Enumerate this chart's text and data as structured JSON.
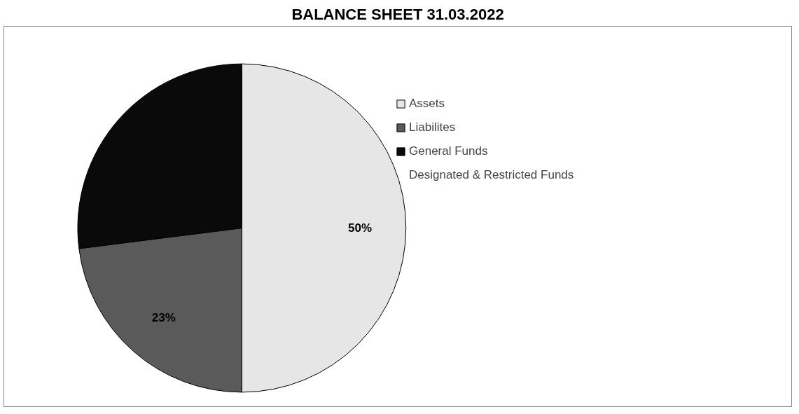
{
  "chart_data": {
    "type": "pie",
    "title": "BALANCE SHEET 31.03.2022",
    "categories": [
      "Assets",
      "Liabilites",
      "General Funds",
      "Designated & Restricted Funds"
    ],
    "values": [
      50,
      23,
      27,
      0
    ],
    "value_labels": [
      "50%",
      "23%",
      null,
      null
    ],
    "colors": [
      "#e6e6e6",
      "#5a5a5a",
      "#0a0a0a",
      "#2e2e2e"
    ],
    "legend": "right"
  }
}
